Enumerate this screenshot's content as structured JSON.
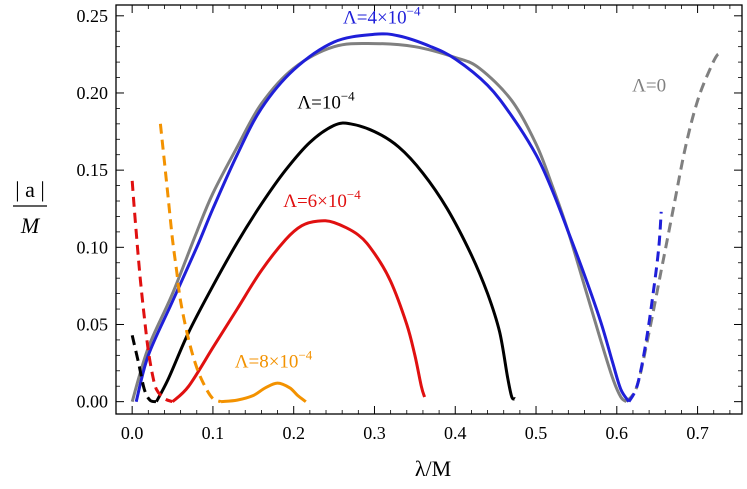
{
  "chart_data": {
    "type": "line",
    "title": "",
    "xlabel": "λ/M",
    "ylabel": "|a| / M",
    "ylabel_numerator": "| a |",
    "ylabel_denominator": "M",
    "xlim": [
      -0.02,
      0.755
    ],
    "ylim": [
      -0.008,
      0.257
    ],
    "xticks": [
      0.0,
      0.1,
      0.2,
      0.3,
      0.4,
      0.5,
      0.6,
      0.7
    ],
    "xtick_labels": [
      "0.0",
      "0.1",
      "0.2",
      "0.3",
      "0.4",
      "0.5",
      "0.6",
      "0.7"
    ],
    "yticks": [
      0.0,
      0.05,
      0.1,
      0.15,
      0.2,
      0.25
    ],
    "ytick_labels": [
      "0.00",
      "0.05",
      "0.10",
      "0.15",
      "0.20",
      "0.25"
    ],
    "grid": false,
    "legend": "none",
    "series": [
      {
        "name": "Λ=0",
        "label_main": "Λ=0",
        "label_sup": "",
        "color": "#808080",
        "solid": [
          [
            0.0,
            0.0
          ],
          [
            0.02,
            0.035
          ],
          [
            0.05,
            0.07
          ],
          [
            0.08,
            0.11
          ],
          [
            0.1,
            0.135
          ],
          [
            0.13,
            0.165
          ],
          [
            0.16,
            0.193
          ],
          [
            0.2,
            0.216
          ],
          [
            0.25,
            0.23
          ],
          [
            0.3,
            0.232
          ],
          [
            0.35,
            0.23
          ],
          [
            0.4,
            0.223
          ],
          [
            0.43,
            0.216
          ],
          [
            0.47,
            0.195
          ],
          [
            0.5,
            0.167
          ],
          [
            0.52,
            0.14
          ],
          [
            0.54,
            0.11
          ],
          [
            0.56,
            0.075
          ],
          [
            0.58,
            0.04
          ],
          [
            0.595,
            0.015
          ],
          [
            0.605,
            0.003
          ],
          [
            0.612,
            0.0
          ]
        ],
        "dashed": [
          [
            0.612,
            0.0
          ],
          [
            0.625,
            0.01
          ],
          [
            0.64,
            0.045
          ],
          [
            0.655,
            0.085
          ],
          [
            0.67,
            0.125
          ],
          [
            0.685,
            0.165
          ],
          [
            0.7,
            0.195
          ],
          [
            0.715,
            0.215
          ],
          [
            0.725,
            0.225
          ],
          [
            0.73,
            0.223
          ]
        ]
      },
      {
        "name": "Λ=4×10−4",
        "label_main": "Λ=4×10",
        "label_sup": "−4",
        "color": "#1f1fd9",
        "solid": [
          [
            0.005,
            0.0
          ],
          [
            0.02,
            0.03
          ],
          [
            0.05,
            0.065
          ],
          [
            0.08,
            0.1
          ],
          [
            0.1,
            0.125
          ],
          [
            0.13,
            0.16
          ],
          [
            0.16,
            0.19
          ],
          [
            0.2,
            0.215
          ],
          [
            0.25,
            0.233
          ],
          [
            0.3,
            0.238
          ],
          [
            0.33,
            0.237
          ],
          [
            0.37,
            0.23
          ],
          [
            0.4,
            0.222
          ],
          [
            0.44,
            0.205
          ],
          [
            0.47,
            0.185
          ],
          [
            0.5,
            0.16
          ],
          [
            0.52,
            0.137
          ],
          [
            0.54,
            0.11
          ],
          [
            0.56,
            0.082
          ],
          [
            0.58,
            0.052
          ],
          [
            0.595,
            0.025
          ],
          [
            0.605,
            0.008
          ],
          [
            0.615,
            0.0
          ]
        ],
        "dashed": [
          [
            0.615,
            0.0
          ],
          [
            0.625,
            0.01
          ],
          [
            0.635,
            0.035
          ],
          [
            0.645,
            0.07
          ],
          [
            0.652,
            0.1
          ],
          [
            0.655,
            0.123
          ]
        ]
      },
      {
        "name": "Λ=10−4",
        "label_main": "Λ=10",
        "label_sup": "−4",
        "color": "#000000",
        "dashed": [
          [
            0.0,
            0.043
          ],
          [
            0.008,
            0.025
          ],
          [
            0.015,
            0.008
          ],
          [
            0.022,
            0.001
          ],
          [
            0.03,
            0.0
          ]
        ],
        "solid": [
          [
            0.03,
            0.0
          ],
          [
            0.045,
            0.015
          ],
          [
            0.07,
            0.045
          ],
          [
            0.1,
            0.075
          ],
          [
            0.13,
            0.103
          ],
          [
            0.16,
            0.128
          ],
          [
            0.19,
            0.15
          ],
          [
            0.22,
            0.168
          ],
          [
            0.25,
            0.179
          ],
          [
            0.27,
            0.18
          ],
          [
            0.3,
            0.175
          ],
          [
            0.33,
            0.165
          ],
          [
            0.36,
            0.148
          ],
          [
            0.39,
            0.125
          ],
          [
            0.42,
            0.095
          ],
          [
            0.44,
            0.07
          ],
          [
            0.455,
            0.045
          ],
          [
            0.465,
            0.015
          ],
          [
            0.47,
            0.003
          ],
          [
            0.474,
            0.002
          ]
        ]
      },
      {
        "name": "Λ=6×10−4",
        "label_main": "Λ=6×10",
        "label_sup": "−4",
        "color": "#e01010",
        "dashed": [
          [
            0.0,
            0.143
          ],
          [
            0.005,
            0.11
          ],
          [
            0.01,
            0.08
          ],
          [
            0.015,
            0.055
          ],
          [
            0.02,
            0.033
          ],
          [
            0.025,
            0.018
          ],
          [
            0.03,
            0.008
          ],
          [
            0.04,
            0.002
          ],
          [
            0.05,
            0.0
          ]
        ],
        "solid": [
          [
            0.05,
            0.0
          ],
          [
            0.07,
            0.01
          ],
          [
            0.1,
            0.035
          ],
          [
            0.13,
            0.06
          ],
          [
            0.16,
            0.085
          ],
          [
            0.19,
            0.105
          ],
          [
            0.21,
            0.114
          ],
          [
            0.23,
            0.117
          ],
          [
            0.25,
            0.116
          ],
          [
            0.28,
            0.108
          ],
          [
            0.3,
            0.096
          ],
          [
            0.32,
            0.078
          ],
          [
            0.34,
            0.05
          ],
          [
            0.35,
            0.03
          ],
          [
            0.358,
            0.01
          ],
          [
            0.362,
            0.003
          ]
        ]
      },
      {
        "name": "Λ=8×10−4",
        "label_main": "Λ=8×10",
        "label_sup": "−4",
        "color": "#f39200",
        "dashed": [
          [
            0.035,
            0.18
          ],
          [
            0.04,
            0.155
          ],
          [
            0.045,
            0.13
          ],
          [
            0.05,
            0.105
          ],
          [
            0.055,
            0.085
          ],
          [
            0.06,
            0.065
          ],
          [
            0.07,
            0.04
          ],
          [
            0.08,
            0.022
          ],
          [
            0.09,
            0.01
          ],
          [
            0.1,
            0.002
          ],
          [
            0.11,
            0.0
          ]
        ],
        "solid": [
          [
            0.11,
            0.0
          ],
          [
            0.13,
            0.001
          ],
          [
            0.15,
            0.004
          ],
          [
            0.165,
            0.009
          ],
          [
            0.18,
            0.012
          ],
          [
            0.195,
            0.009
          ],
          [
            0.205,
            0.004
          ],
          [
            0.215,
            0.0
          ]
        ]
      }
    ],
    "annotations": [
      {
        "series": 1,
        "x": 0.309,
        "y": 0.245
      },
      {
        "series": 0,
        "x": 0.64,
        "y": 0.201
      },
      {
        "series": 2,
        "x": 0.24,
        "y": 0.19
      },
      {
        "series": 3,
        "x": 0.235,
        "y": 0.126
      },
      {
        "series": 4,
        "x": 0.175,
        "y": 0.022
      }
    ]
  }
}
